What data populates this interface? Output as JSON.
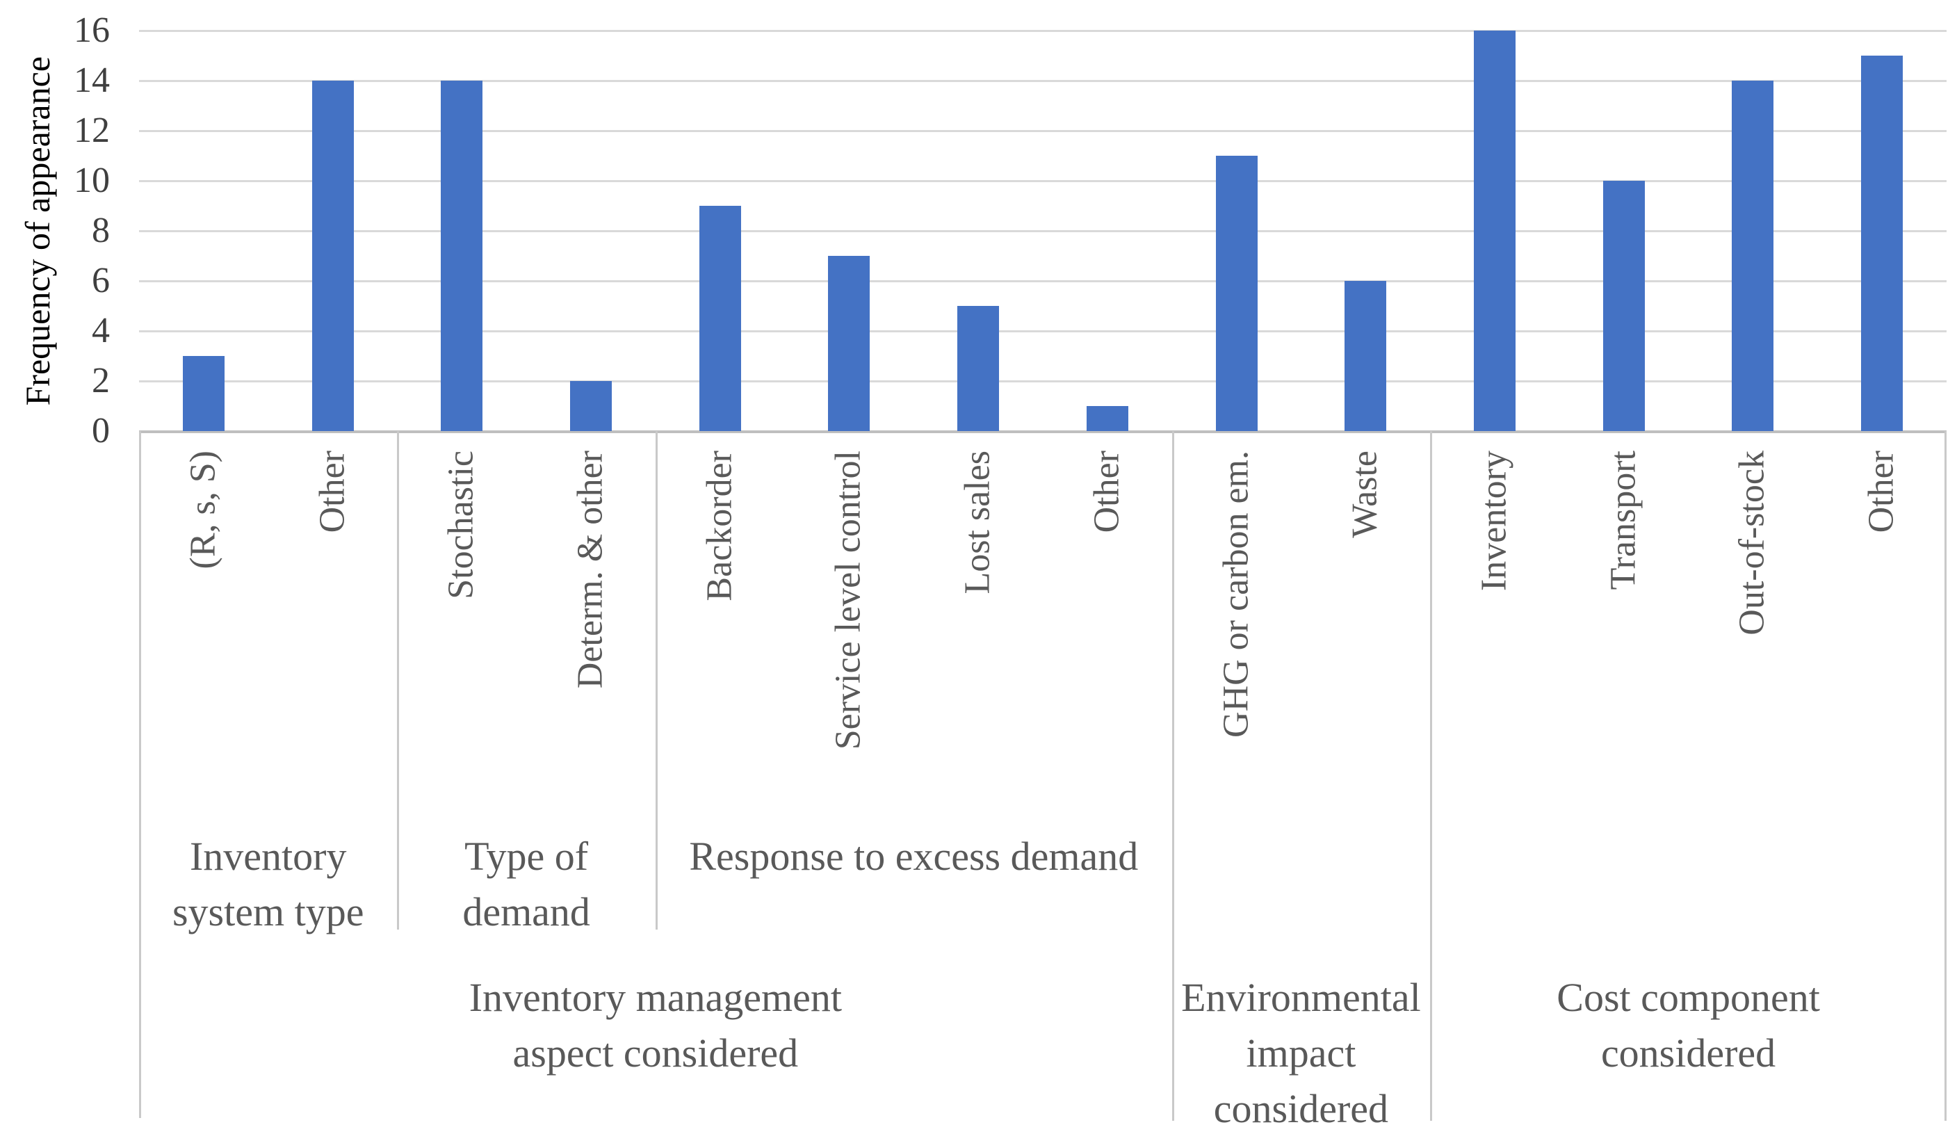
{
  "chart_data": {
    "type": "bar",
    "title": "",
    "ylabel": "Frequency of appearance",
    "xlabel": "",
    "ylim": [
      0,
      16
    ],
    "yticks": [
      0,
      2,
      4,
      6,
      8,
      10,
      12,
      14,
      16
    ],
    "grid": "horizontal",
    "legend_position": "none",
    "categories": [
      "(R, s, S)",
      "Other",
      "Stochastic",
      "Determ. & other",
      "Backorder",
      "Service level control",
      "Lost sales",
      "Other",
      "GHG or carbon em.",
      "Waste",
      "Inventory",
      "Transport",
      "Out-of-stock",
      "Other"
    ],
    "values": [
      3,
      14,
      14,
      2,
      9,
      7,
      5,
      1,
      11,
      6,
      16,
      10,
      14,
      15
    ],
    "category_groups": [
      {
        "label": "Inventory system type",
        "lines": [
          "Inventory",
          "system type"
        ],
        "span": 2,
        "band": "upper"
      },
      {
        "label": "Type of demand",
        "lines": [
          "Type of",
          "demand"
        ],
        "span": 2,
        "band": "upper"
      },
      {
        "label": "Response to excess demand",
        "lines": [
          "Response to excess demand"
        ],
        "span": 4,
        "band": "upper"
      },
      {
        "label": "Environmental impact considered",
        "lines": [
          "Environmental",
          "impact",
          "considered"
        ],
        "span": 2,
        "band": "lower"
      },
      {
        "label": "Cost component considered",
        "lines": [
          "Cost component",
          "considered"
        ],
        "span": 4,
        "band": "lower"
      }
    ],
    "category_supergroups": [
      {
        "label": "Inventory management aspect considered",
        "lines": [
          "Inventory management",
          "aspect considered"
        ],
        "start": 0,
        "span": 8
      }
    ],
    "colors": {
      "bar": "#4472C4",
      "gridline": "#D9D9D9",
      "axis_line": "#BFBFBF",
      "divider_line": "#C9C9C9",
      "tick_text": "#3F3F3F",
      "label_text": "#595959"
    }
  }
}
